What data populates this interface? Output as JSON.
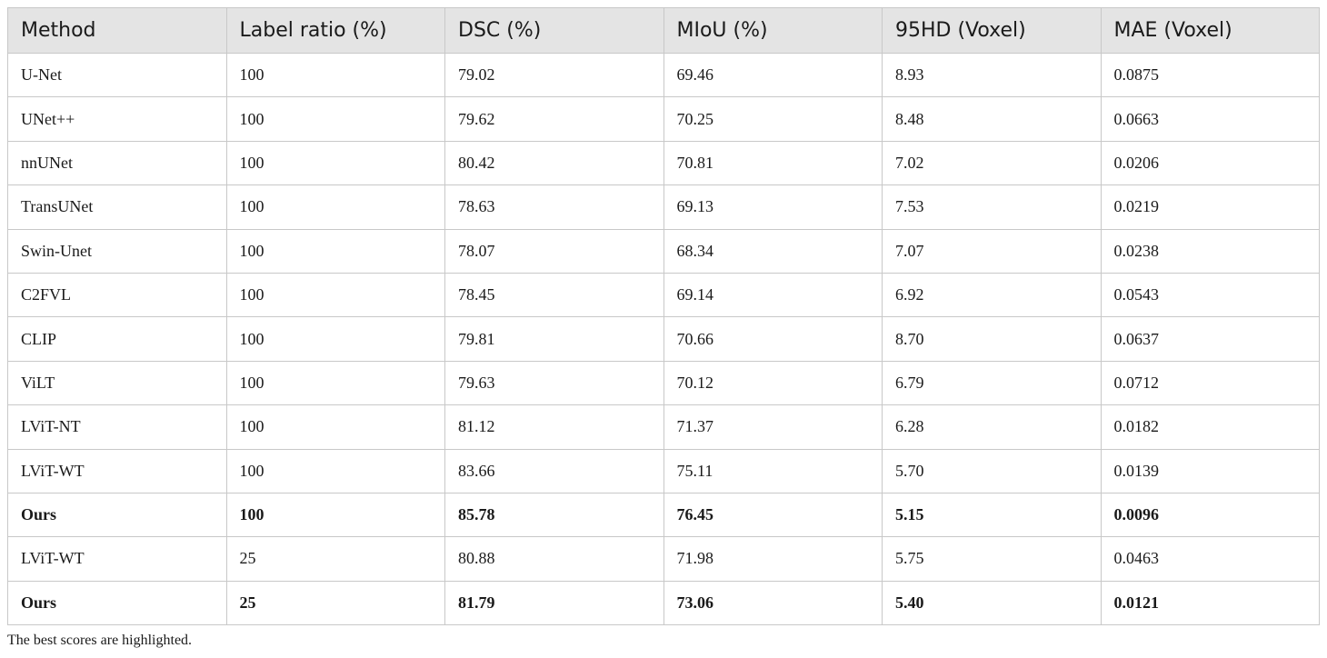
{
  "table": {
    "header": [
      "Method",
      "Label ratio (%)",
      "DSC (%)",
      "MIoU (%)",
      "95HD (Voxel)",
      "MAE (Voxel)"
    ],
    "rows": [
      {
        "cells": [
          "U-Net",
          "100",
          "79.02",
          "69.46",
          "8.93",
          "0.0875"
        ]
      },
      {
        "cells": [
          "UNet++",
          "100",
          "79.62",
          "70.25",
          "8.48",
          "0.0663"
        ]
      },
      {
        "cells": [
          "nnUNet",
          "100",
          "80.42",
          "70.81",
          "7.02",
          "0.0206"
        ]
      },
      {
        "cells": [
          "TransUNet",
          "100",
          "78.63",
          "69.13",
          "7.53",
          "0.0219"
        ]
      },
      {
        "cells": [
          "Swin-Unet",
          "100",
          "78.07",
          "68.34",
          "7.07",
          "0.0238"
        ]
      },
      {
        "cells": [
          "C2FVL",
          "100",
          "78.45",
          "69.14",
          "6.92",
          "0.0543"
        ]
      },
      {
        "cells": [
          "CLIP",
          "100",
          "79.81",
          "70.66",
          "8.70",
          "0.0637"
        ]
      },
      {
        "cells": [
          "ViLT",
          "100",
          "79.63",
          "70.12",
          "6.79",
          "0.0712"
        ]
      },
      {
        "cells": [
          "LViT-NT",
          "100",
          "81.12",
          "71.37",
          "6.28",
          "0.0182"
        ]
      },
      {
        "cells": [
          "LViT-WT",
          "100",
          "83.66",
          "75.11",
          "5.70",
          "0.0139"
        ]
      },
      {
        "cells": [
          "Ours",
          "100",
          "85.78",
          "76.45",
          "5.15",
          "0.0096"
        ],
        "bold": true
      },
      {
        "cells": [
          "LViT-WT",
          "25",
          "80.88",
          "71.98",
          "5.75",
          "0.0463"
        ]
      },
      {
        "cells": [
          "Ours",
          "25",
          "81.79",
          "73.06",
          "5.40",
          "0.0121"
        ],
        "bold": true
      }
    ],
    "footnote": "The best scores are highlighted."
  }
}
